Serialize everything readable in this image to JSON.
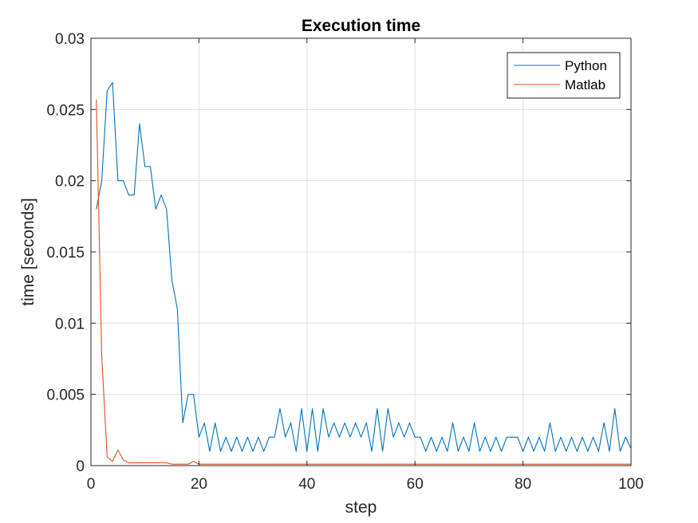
{
  "chart_data": {
    "type": "line",
    "title": "Execution time",
    "xlabel": "step",
    "ylabel": "time [seconds]",
    "xlim": [
      0,
      100
    ],
    "ylim": [
      0,
      0.03
    ],
    "x_ticks": [
      0,
      20,
      40,
      60,
      80,
      100
    ],
    "x_tick_labels": [
      "0",
      "20",
      "40",
      "60",
      "80",
      "100"
    ],
    "y_ticks": [
      0,
      0.005,
      0.01,
      0.015,
      0.02,
      0.025,
      0.03
    ],
    "y_tick_labels": [
      "0",
      "0.005",
      "0.01",
      "0.015",
      "0.02",
      "0.025",
      "0.03"
    ],
    "grid": true,
    "legend_position": "top-right",
    "colors": {
      "Python": "#0072bd",
      "Matlab": "#d95319"
    },
    "series": [
      {
        "name": "Python",
        "x": [
          1,
          2,
          3,
          4,
          5,
          6,
          7,
          8,
          9,
          10,
          11,
          12,
          13,
          14,
          15,
          16,
          17,
          18,
          19,
          20,
          21,
          22,
          23,
          24,
          25,
          26,
          27,
          28,
          29,
          30,
          31,
          32,
          33,
          34,
          35,
          36,
          37,
          38,
          39,
          40,
          41,
          42,
          43,
          44,
          45,
          46,
          47,
          48,
          49,
          50,
          51,
          52,
          53,
          54,
          55,
          56,
          57,
          58,
          59,
          60,
          61,
          62,
          63,
          64,
          65,
          66,
          67,
          68,
          69,
          70,
          71,
          72,
          73,
          74,
          75,
          76,
          77,
          78,
          79,
          80,
          81,
          82,
          83,
          84,
          85,
          86,
          87,
          88,
          89,
          90,
          91,
          92,
          93,
          94,
          95,
          96,
          97,
          98,
          99,
          100
        ],
        "y": [
          0.018,
          0.02,
          0.0263,
          0.0269,
          0.02,
          0.02,
          0.019,
          0.019,
          0.024,
          0.021,
          0.021,
          0.018,
          0.019,
          0.018,
          0.013,
          0.011,
          0.003,
          0.005,
          0.005,
          0.002,
          0.003,
          0.001,
          0.003,
          0.001,
          0.002,
          0.001,
          0.002,
          0.001,
          0.002,
          0.001,
          0.002,
          0.001,
          0.002,
          0.002,
          0.004,
          0.002,
          0.003,
          0.001,
          0.004,
          0.001,
          0.004,
          0.001,
          0.004,
          0.002,
          0.003,
          0.002,
          0.003,
          0.002,
          0.003,
          0.002,
          0.003,
          0.001,
          0.004,
          0.001,
          0.004,
          0.002,
          0.003,
          0.002,
          0.003,
          0.002,
          0.002,
          0.001,
          0.002,
          0.001,
          0.002,
          0.001,
          0.003,
          0.001,
          0.002,
          0.001,
          0.003,
          0.001,
          0.002,
          0.001,
          0.002,
          0.001,
          0.002,
          0.002,
          0.002,
          0.001,
          0.002,
          0.001,
          0.002,
          0.001,
          0.003,
          0.001,
          0.002,
          0.001,
          0.002,
          0.001,
          0.002,
          0.001,
          0.002,
          0.001,
          0.003,
          0.001,
          0.004,
          0.001,
          0.002,
          0.0012
        ]
      },
      {
        "name": "Matlab",
        "x": [
          1,
          2,
          3,
          4,
          5,
          6,
          7,
          8,
          9,
          10,
          11,
          12,
          13,
          14,
          15,
          16,
          17,
          18,
          19,
          20,
          21,
          22,
          23,
          24,
          25,
          26,
          27,
          28,
          29,
          30,
          31,
          32,
          33,
          34,
          35,
          36,
          37,
          38,
          39,
          40,
          41,
          42,
          43,
          44,
          45,
          46,
          47,
          48,
          49,
          50,
          51,
          52,
          53,
          54,
          55,
          56,
          57,
          58,
          59,
          60,
          61,
          62,
          63,
          64,
          65,
          66,
          67,
          68,
          69,
          70,
          71,
          72,
          73,
          74,
          75,
          76,
          77,
          78,
          79,
          80,
          81,
          82,
          83,
          84,
          85,
          86,
          87,
          88,
          89,
          90,
          91,
          92,
          93,
          94,
          95,
          96,
          97,
          98,
          99,
          100
        ],
        "y": [
          0.0257,
          0.0077,
          0.0006,
          0.0003,
          0.0011,
          0.0004,
          0.0002,
          0.0002,
          0.0002,
          0.0002,
          0.0002,
          0.0002,
          0.0002,
          0.0002,
          0.0001,
          0.0001,
          0.0001,
          0.0001,
          0.0003,
          0.0001,
          0.0001,
          0.0001,
          0.0001,
          0.0001,
          0.0001,
          0.0001,
          0.0001,
          0.0001,
          0.0001,
          0.0001,
          0.0001,
          0.0001,
          0.0001,
          0.0001,
          0.0001,
          0.0001,
          0.0001,
          0.0001,
          0.0001,
          0.0001,
          0.0001,
          0.0001,
          0.0001,
          0.0001,
          0.0001,
          0.0001,
          0.0001,
          0.0001,
          0.0001,
          0.0001,
          0.0001,
          0.0001,
          0.0001,
          0.0001,
          0.0001,
          0.0001,
          0.0001,
          0.0001,
          0.0001,
          0.0001,
          0.0001,
          0.0001,
          0.0001,
          0.0001,
          0.0001,
          0.0001,
          0.0001,
          0.0001,
          0.0001,
          0.0001,
          0.0001,
          0.0001,
          0.0001,
          0.0001,
          0.0001,
          0.0001,
          0.0001,
          0.0001,
          0.0001,
          0.0001,
          0.0001,
          0.0001,
          0.0001,
          0.0001,
          0.0001,
          0.0001,
          0.0001,
          0.0001,
          0.0001,
          0.0001,
          0.0001,
          0.0001,
          0.0001,
          0.0001,
          0.0001,
          0.0001,
          0.0001,
          0.0001,
          0.0001,
          0.0001
        ]
      }
    ]
  }
}
